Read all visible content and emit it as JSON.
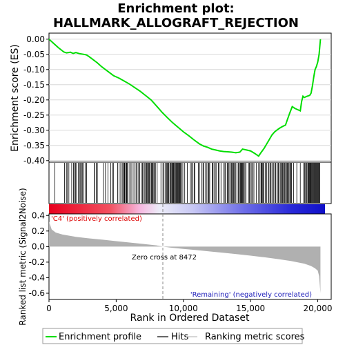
{
  "chart_data": {
    "type": "line",
    "title_line1": "Enrichment plot:",
    "title_line2": "HALLMARK_ALLOGRAFT_REJECTION",
    "es_ylabel": "Enrichment score (ES)",
    "metric_ylabel": "Ranked list metric (Signal2Noise)",
    "xlabel": "Rank in Ordered Dataset",
    "xlim": [
      0,
      21000
    ],
    "es_ylim": [
      -0.405,
      0.02
    ],
    "metric_ylim": [
      -0.68,
      0.42
    ],
    "x_ticks": [
      0,
      5000,
      10000,
      15000,
      20000
    ],
    "x_tick_labels": [
      "0",
      "5,000",
      "10,000",
      "15,000",
      "20,000"
    ],
    "es_ticks": [
      0.0,
      -0.05,
      -0.1,
      -0.15,
      -0.2,
      -0.25,
      -0.3,
      -0.35,
      -0.4
    ],
    "es_tick_labels": [
      "0.00",
      "-0.05",
      "-0.10",
      "-0.15",
      "-0.20",
      "-0.25",
      "-0.30",
      "-0.35",
      "-0.40"
    ],
    "metric_ticks": [
      0.4,
      0.2,
      0.0,
      -0.2,
      -0.4,
      -0.6
    ],
    "metric_tick_labels": [
      "0.4",
      "0.2",
      "0.0",
      "-0.2",
      "-0.4",
      "-0.6"
    ],
    "zero_cross": 8472,
    "zero_cross_label": "Zero cross at 8472",
    "pos_label": "'C4' (positively correlated)",
    "neg_label": "'Remaining' (negatively correlated)",
    "series": [
      {
        "name": "Enrichment profile",
        "color": "#00dd00",
        "x": [
          0,
          300,
          700,
          1100,
          1300,
          1600,
          1800,
          2000,
          2300,
          2600,
          2800,
          3000,
          3300,
          3600,
          3900,
          4200,
          4500,
          4800,
          5200,
          5600,
          6000,
          6400,
          6800,
          7200,
          7600,
          8000,
          8400,
          8800,
          9200,
          9600,
          10000,
          10400,
          10800,
          11200,
          11500,
          11800,
          12100,
          12400,
          12700,
          13000,
          13300,
          13600,
          13900,
          14200,
          14400,
          14700,
          15000,
          15300,
          15600,
          15800,
          16000,
          16200,
          16400,
          16600,
          16800,
          17000,
          17200,
          17400,
          17600,
          17700,
          17900,
          18100,
          18300,
          18500,
          18700,
          18800,
          18900,
          19000,
          19200,
          19400,
          19500,
          19600,
          19700,
          19800,
          19900,
          20000,
          20100,
          20200
        ],
        "y": [
          0.0,
          -0.012,
          -0.028,
          -0.042,
          -0.045,
          -0.043,
          -0.047,
          -0.044,
          -0.048,
          -0.05,
          -0.052,
          -0.058,
          -0.068,
          -0.078,
          -0.09,
          -0.1,
          -0.11,
          -0.12,
          -0.128,
          -0.138,
          -0.148,
          -0.16,
          -0.172,
          -0.186,
          -0.2,
          -0.22,
          -0.24,
          -0.258,
          -0.275,
          -0.29,
          -0.305,
          -0.318,
          -0.332,
          -0.345,
          -0.352,
          -0.356,
          -0.362,
          -0.365,
          -0.368,
          -0.37,
          -0.371,
          -0.372,
          -0.374,
          -0.372,
          -0.362,
          -0.365,
          -0.368,
          -0.376,
          -0.385,
          -0.372,
          -0.36,
          -0.345,
          -0.33,
          -0.315,
          -0.305,
          -0.298,
          -0.292,
          -0.287,
          -0.283,
          -0.27,
          -0.245,
          -0.222,
          -0.228,
          -0.232,
          -0.236,
          -0.205,
          -0.188,
          -0.192,
          -0.188,
          -0.185,
          -0.178,
          -0.155,
          -0.125,
          -0.1,
          -0.09,
          -0.075,
          -0.05,
          0.0
        ]
      }
    ],
    "metric_series": {
      "name": "Ranking metric scores",
      "color": "#b0b0b0",
      "x": [
        0,
        200,
        500,
        1000,
        2000,
        3000,
        4000,
        5000,
        6000,
        7000,
        8000,
        8472,
        9000,
        10000,
        11000,
        12000,
        13000,
        14000,
        15000,
        16000,
        17000,
        18000,
        19000,
        19500,
        19800,
        20000,
        20100,
        20200
      ],
      "y": [
        0.32,
        0.22,
        0.18,
        0.155,
        0.125,
        0.105,
        0.088,
        0.07,
        0.052,
        0.034,
        0.015,
        0.0,
        -0.012,
        -0.03,
        -0.046,
        -0.063,
        -0.08,
        -0.098,
        -0.117,
        -0.137,
        -0.16,
        -0.185,
        -0.22,
        -0.25,
        -0.28,
        -0.31,
        -0.38,
        -0.6
      ]
    },
    "hits": [
      430,
      1150,
      1290,
      1350,
      1480,
      1690,
      1820,
      1870,
      1980,
      2050,
      2190,
      2270,
      2350,
      2420,
      2480,
      2600,
      2710,
      2800,
      3370,
      3390,
      3520,
      3600,
      4050,
      4200,
      4390,
      4590,
      4710,
      4790,
      5110,
      5220,
      5340,
      5450,
      5520,
      5600,
      5640,
      5720,
      5770,
      5810,
      5870,
      6010,
      6110,
      6260,
      6390,
      6480,
      6560,
      6670,
      6750,
      6870,
      6960,
      7060,
      7130,
      7200,
      7270,
      7300,
      7370,
      7430,
      7480,
      7540,
      7620,
      7680,
      7720,
      7800,
      7840,
      7920,
      8050,
      8330,
      8480,
      8560,
      8650,
      8760,
      8810,
      8880,
      8920,
      9000,
      9060,
      9130,
      9160,
      9210,
      9260,
      9300,
      9370,
      9410,
      9470,
      9520,
      9570,
      9620,
      9680,
      9700,
      9750,
      9800,
      9860,
      9960,
      10100,
      10300,
      10520,
      10620,
      10700,
      10800,
      10850,
      11110,
      11200,
      11360,
      11460,
      11520,
      11650,
      11750,
      11860,
      11900,
      11960,
      12140,
      12200,
      12280,
      12380,
      12470,
      12600,
      12660,
      12800,
      13000,
      13090,
      13150,
      13270,
      13340,
      13400,
      13490,
      13570,
      13620,
      13700,
      13750,
      13800,
      13900,
      14000,
      14100,
      14160,
      14230,
      14280,
      14310,
      14340,
      14400,
      14470,
      14510,
      14580,
      14650,
      14850,
      14920,
      15000,
      15090,
      15160,
      15250,
      15420,
      15600,
      15700,
      15780,
      15820,
      15870,
      15930,
      16000,
      16100,
      16200,
      16300,
      16370,
      16450,
      16520,
      16600,
      16700,
      16800,
      16870,
      16960,
      17050,
      17100,
      17210,
      17270,
      17350,
      17400,
      17460,
      17540,
      17600,
      17680,
      17740,
      17800,
      17860,
      17930,
      17990,
      18050,
      18200,
      18440,
      18700,
      18950,
      19030,
      19100,
      19140,
      19200,
      19270,
      19320,
      19360,
      19410,
      19460,
      19500,
      19550,
      19600,
      19650,
      19700,
      19740,
      19800,
      19850,
      19900,
      19950,
      20000,
      20050,
      20100,
      20150
    ]
  },
  "legend": {
    "profile": "Enrichment profile",
    "hits": "Hits",
    "metric": "Ranking metric scores"
  }
}
